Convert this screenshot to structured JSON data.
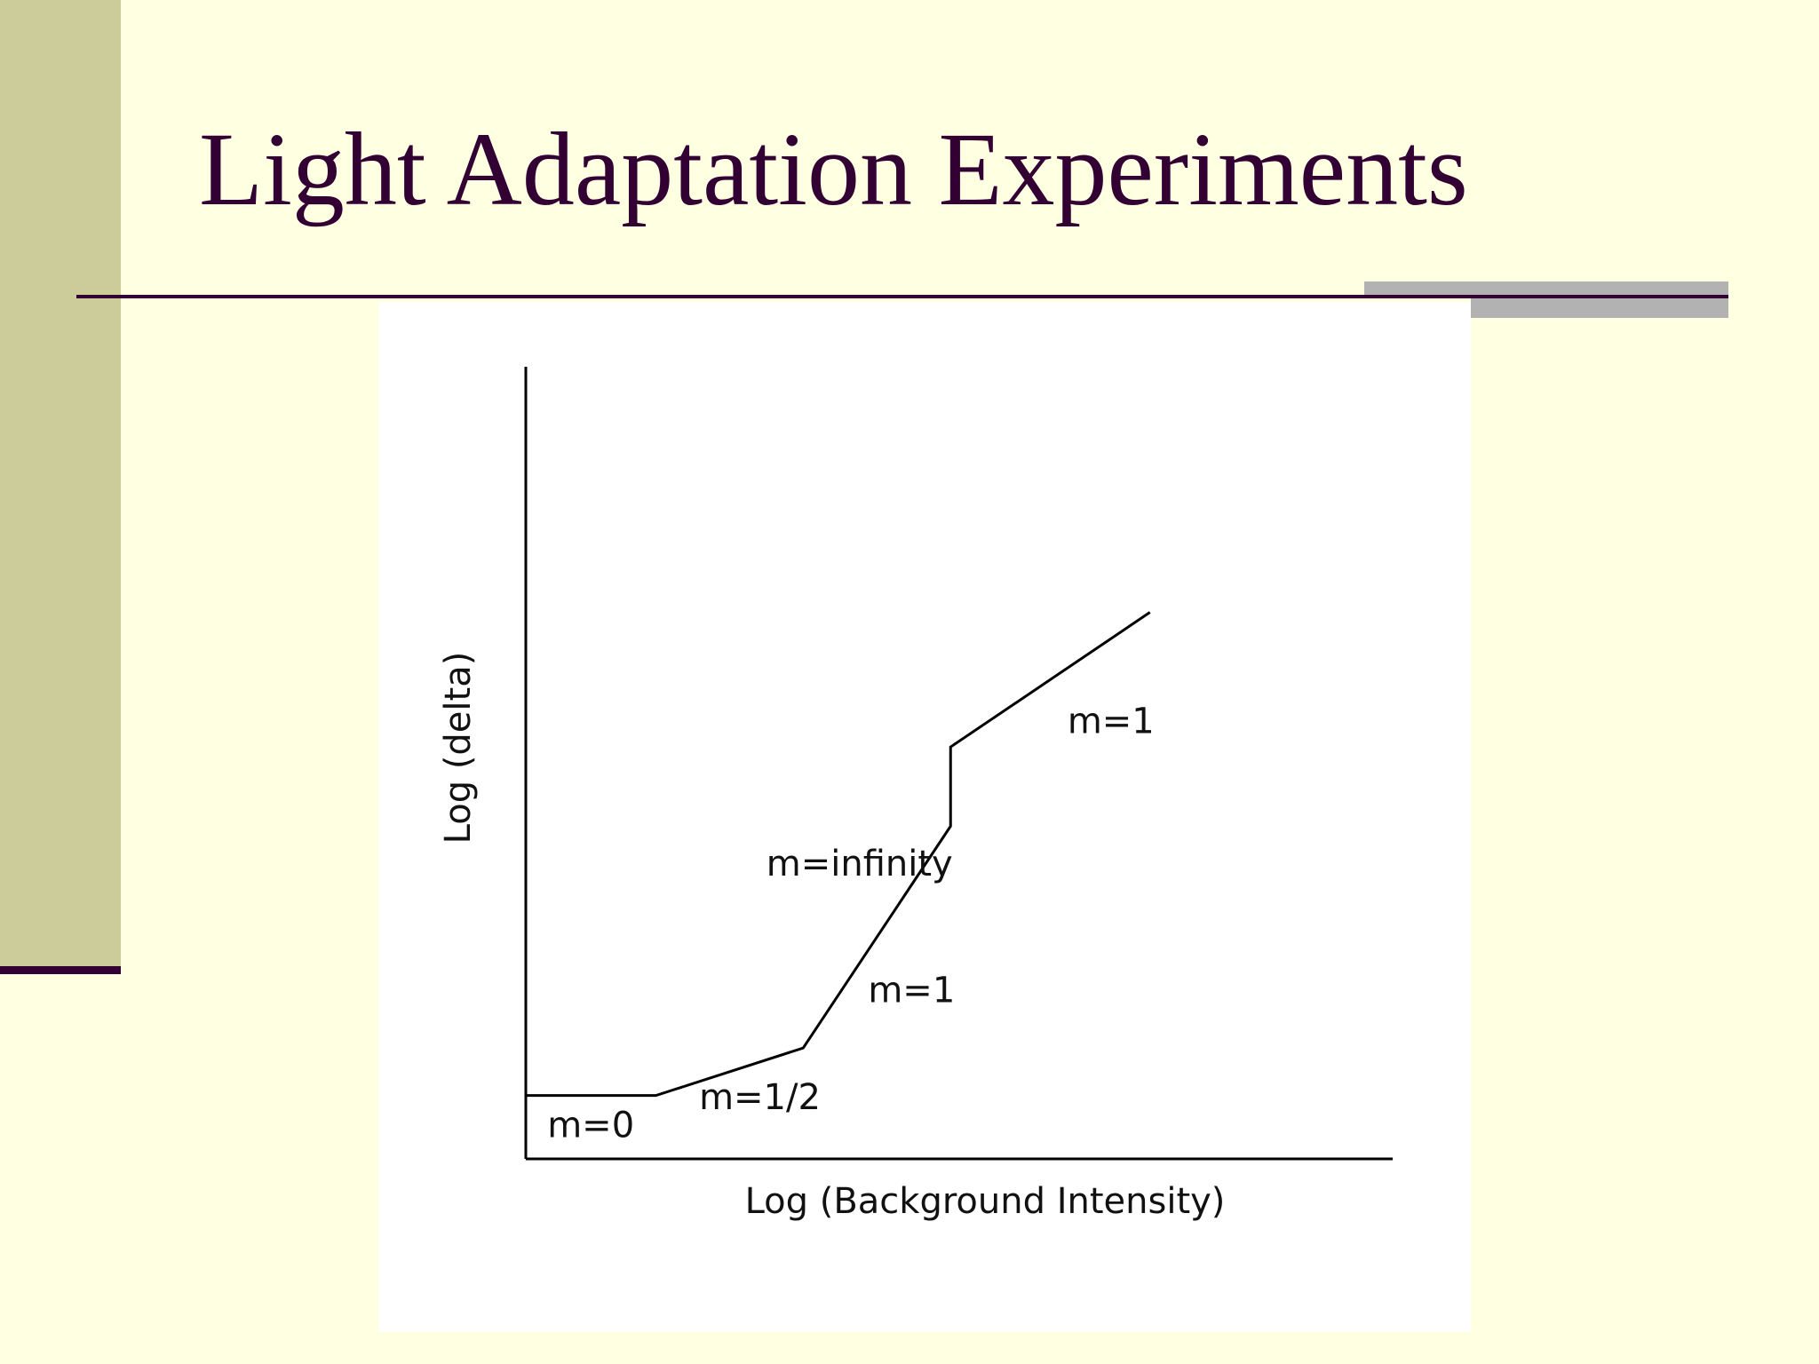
{
  "slide": {
    "title": "Light Adaptation Experiments",
    "colors": {
      "background": "#ffffe1",
      "sidebar": "#cccc9a",
      "title_text": "#330033",
      "rule": "#330033",
      "shadow": "#b2b2b2",
      "figure_background": "#ffffff"
    }
  },
  "chart_data": {
    "type": "line",
    "title": "",
    "xlabel": "Log (Background Intensity)",
    "ylabel": "Log (delta)",
    "xlim": [
      0,
      10
    ],
    "ylim": [
      0,
      10
    ],
    "grid": false,
    "legend": "none",
    "series": [
      {
        "points": [
          [
            0,
            0.8
          ],
          [
            1.5,
            0.8
          ],
          [
            3.2,
            1.4
          ],
          [
            4.9,
            4.2
          ],
          [
            4.9,
            5.2
          ],
          [
            7.2,
            6.9
          ]
        ]
      }
    ],
    "annotations": [
      {
        "text": "m=0",
        "x": 0.75,
        "y": 0.4
      },
      {
        "text": "m=1/2",
        "x": 2.7,
        "y": 0.75
      },
      {
        "text": "m=1",
        "x": 4.45,
        "y": 2.1
      },
      {
        "text": "m=infinity",
        "x": 3.85,
        "y": 3.7
      },
      {
        "text": "m=1",
        "x": 6.75,
        "y": 5.5
      }
    ]
  }
}
